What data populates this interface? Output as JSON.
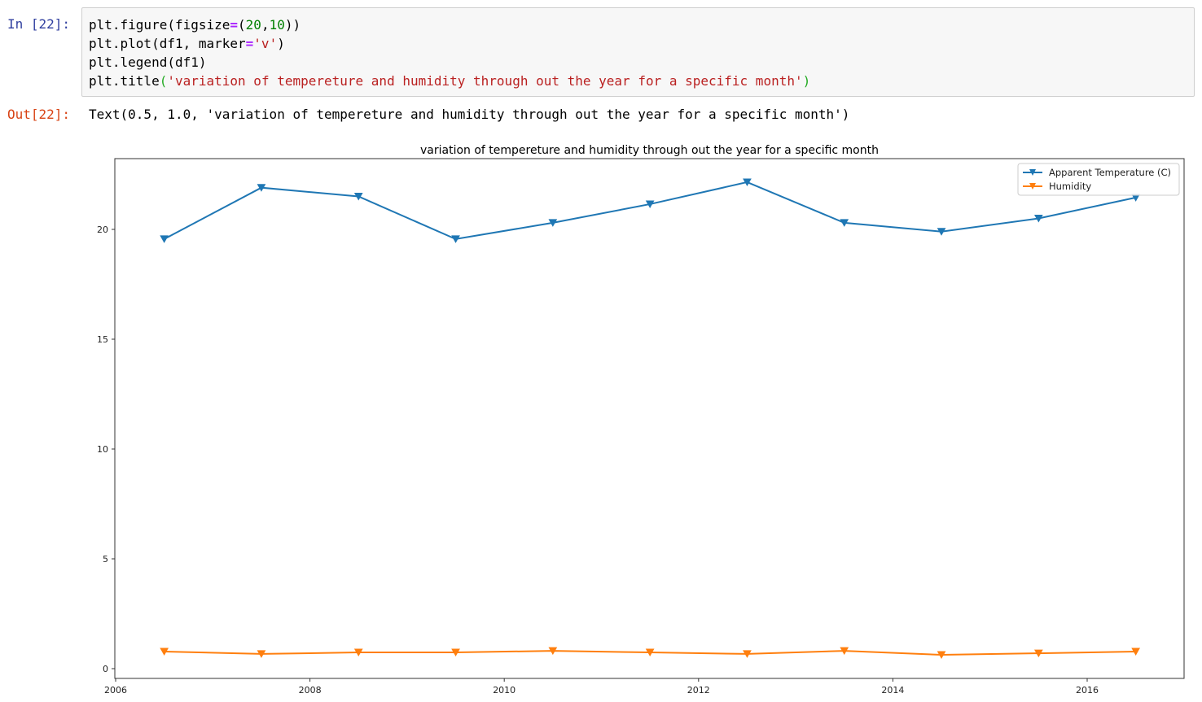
{
  "cell_in": {
    "prompt": "In [22]:",
    "code_lines": [
      "plt.figure(figsize=(20,10))",
      "plt.plot(df1, marker='v')",
      "plt.legend(df1)",
      "plt.title('variation of tempereture and humidity through out the year for a specific month')"
    ],
    "tokens": {
      "line1": {
        "a": "plt.figure(figsize",
        "op": "=",
        "b": "(",
        "n1": "20",
        "c": ",",
        "n2": "10",
        "d": "))"
      },
      "line2": {
        "a": "plt.plot(df1, marker",
        "op": "=",
        "s": "'v'",
        "d": ")"
      },
      "line3": {
        "a": "plt.legend(df1)"
      },
      "line4": {
        "a": "plt.title",
        "p1": "(",
        "s": "'variation of tempereture and humidity through out the year for a specific month'",
        "p2": ")"
      }
    }
  },
  "cell_out": {
    "prompt": "Out[22]:",
    "text": "Text(0.5, 1.0, 'variation of tempereture and humidity through out the year for a specific month')"
  },
  "colors": {
    "series_1": "#1f77b4",
    "series_2": "#ff7f0e",
    "prompt_in": "#303f9f",
    "prompt_out": "#d84315",
    "code_bg": "#f7f7f7"
  },
  "chart_data": {
    "type": "line",
    "title": "variation of tempereture and humidity through out the year for a specific month",
    "xlabel": "",
    "ylabel": "",
    "x": [
      2006.5,
      2007.5,
      2008.5,
      2009.5,
      2010.5,
      2011.5,
      2012.5,
      2013.5,
      2014.5,
      2015.5,
      2016.5
    ],
    "series": [
      {
        "name": "Apparent Temperature (C)",
        "color": "#1f77b4",
        "marker": "v",
        "values": [
          19.56,
          21.9,
          21.5,
          19.56,
          20.3,
          21.15,
          22.15,
          20.3,
          19.9,
          20.5,
          21.45
        ]
      },
      {
        "name": "Humidity",
        "color": "#ff7f0e",
        "marker": "v",
        "values": [
          0.78,
          0.67,
          0.74,
          0.74,
          0.81,
          0.74,
          0.67,
          0.81,
          0.63,
          0.7,
          0.78
        ]
      }
    ],
    "xlim": [
      2006,
      2017.0
    ],
    "ylim": [
      -0.4,
      23.2
    ],
    "xticks": [
      "2006",
      "2008",
      "2010",
      "2012",
      "2014",
      "2016"
    ],
    "yticks": [
      "0",
      "5",
      "10",
      "15",
      "20"
    ],
    "grid": false,
    "legend_position": "upper right"
  }
}
